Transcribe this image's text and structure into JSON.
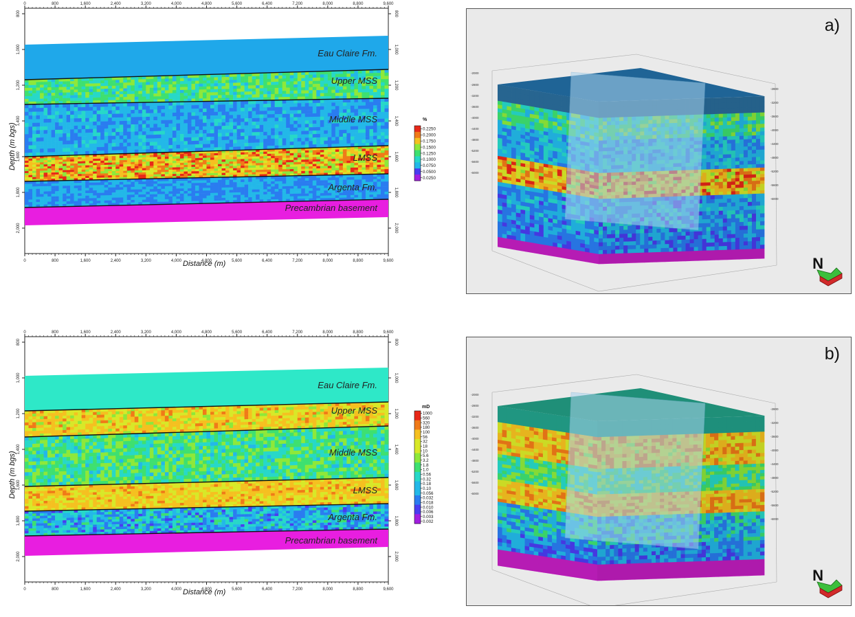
{
  "figure_top": {
    "x_ticks": [
      "0",
      "800",
      "1,600",
      "2,400",
      "3,200",
      "4,000",
      "4,800",
      "5,600",
      "6,400",
      "7,200",
      "8,000",
      "8,800",
      "9,600"
    ],
    "y_ticks": [
      "800",
      "1,000",
      "1,200",
      "1,400",
      "1,600",
      "1,800",
      "2,000"
    ],
    "ylabel": "Depth (m bgs)",
    "xlabel": "Distance (m)",
    "layers": [
      "Eau Claire Fm.",
      "Upper MSS",
      "Middle MSS",
      "LMSS",
      "Argenta Fm.",
      "Precambrian basement"
    ],
    "colorbar_unit": "%",
    "colorbar_labels": [
      "0.2250",
      "0.2000",
      "0.1750",
      "0.1500",
      "0.1250",
      "0.1000",
      "0.0750",
      "0.0500",
      "0.0250"
    ]
  },
  "figure_bottom": {
    "x_ticks": [
      "0",
      "800",
      "1,600",
      "2,400",
      "3,200",
      "4,000",
      "4,800",
      "5,600",
      "6,400",
      "7,200",
      "8,000",
      "8,800",
      "9,600"
    ],
    "y_ticks": [
      "800",
      "1,000",
      "1,200",
      "1,400",
      "1,600",
      "1,800",
      "2,000"
    ],
    "ylabel": "Depth (m bgs)",
    "xlabel": "Distance (m)",
    "layers": [
      "Eau Claire Fm.",
      "Upper MSS",
      "Middle MSS",
      "LMSS",
      "Argenta Fm.",
      "Precambrian basement"
    ],
    "colorbar_unit": "mD",
    "colorbar_labels": [
      "1000",
      "560",
      "320",
      "180",
      "100",
      "56",
      "32",
      "18",
      "10",
      "5.6",
      "3.2",
      "1.8",
      "1.0",
      "0.56",
      "0.32",
      "0.18",
      "0.10",
      "0.056",
      "0.032",
      "0.018",
      "0.010",
      "0.006",
      "0.003",
      "0.002"
    ]
  },
  "panel_a": {
    "letter": "a)",
    "north": "N"
  },
  "panel_b": {
    "letter": "b)",
    "north": "N"
  },
  "colors": {
    "eau_claire_top": "#1fa6e6",
    "eau_claire_bottom": "#2ee8c8",
    "basement": "#e81ee0",
    "panel_bg": "#eaeaea",
    "block_top_a": "#1f5f8f",
    "block_top_b": "#1f8f78"
  }
}
